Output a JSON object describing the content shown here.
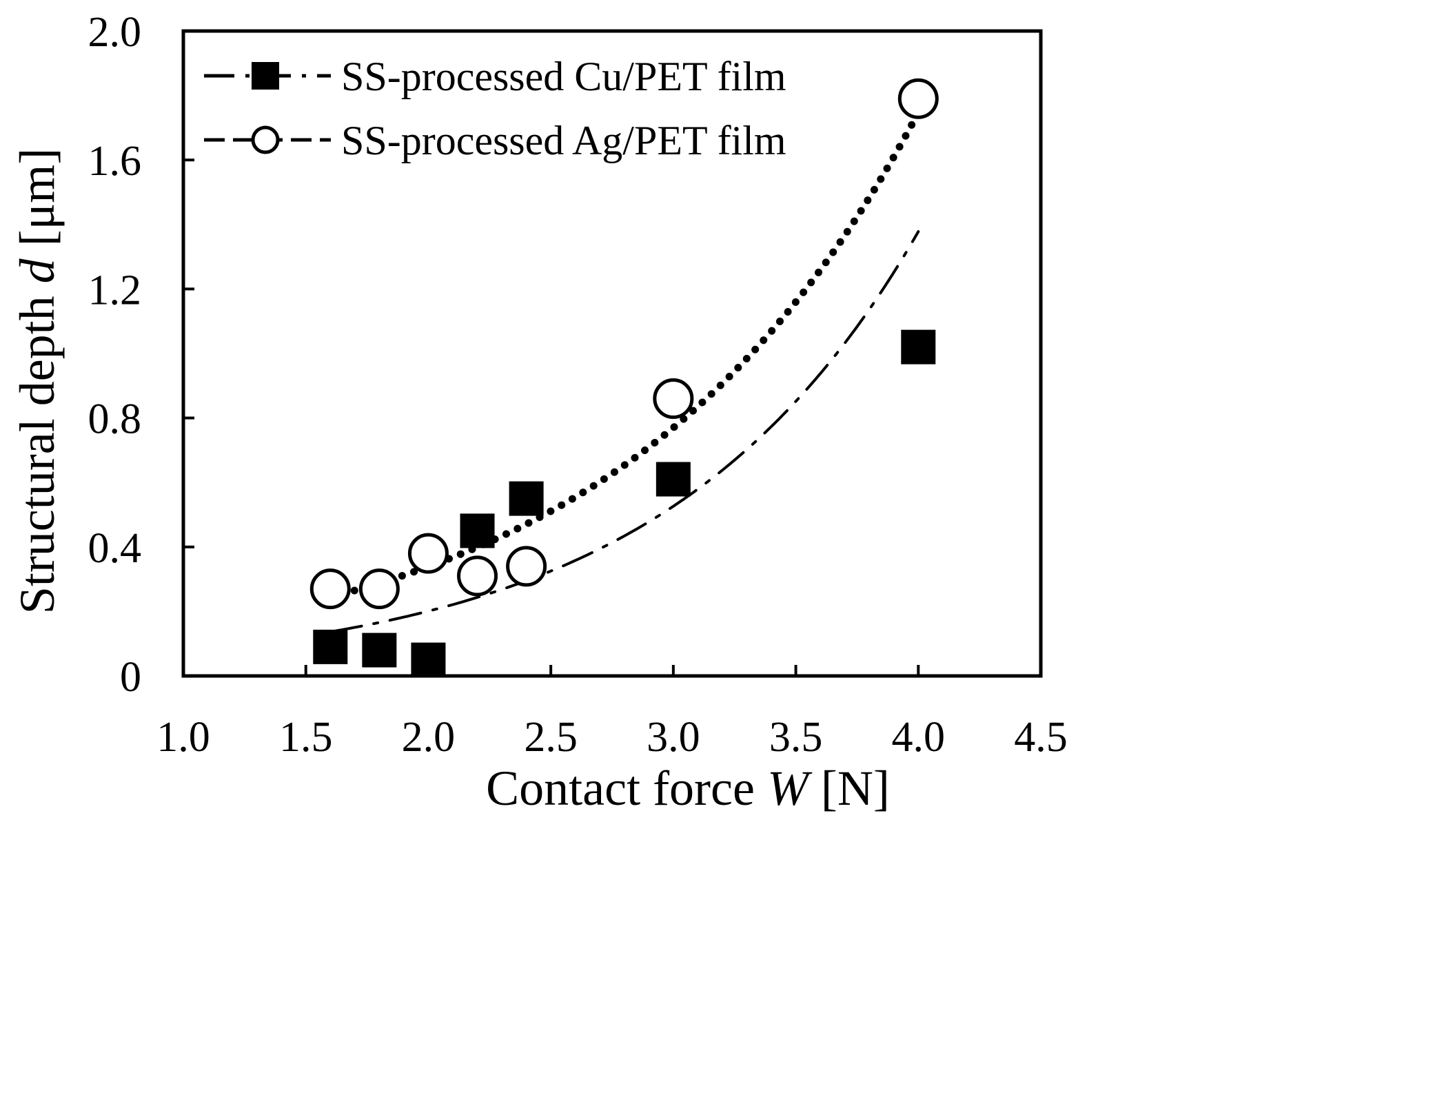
{
  "chart_data": {
    "type": "scatter",
    "title": "",
    "xlabel": "Contact force",
    "xlabel_var": "W",
    "xlabel_unit": "[N]",
    "ylabel": "Structural depth",
    "ylabel_var": "d",
    "ylabel_unit": "[μm]",
    "xlim": [
      1.0,
      4.5
    ],
    "ylim": [
      0,
      2.0
    ],
    "xticks": [
      1.0,
      1.5,
      2.0,
      2.5,
      3.0,
      3.5,
      4.0,
      4.5
    ],
    "xtick_labels": [
      "1.0",
      "1.5",
      "2.0",
      "2.5",
      "3.0",
      "3.5",
      "4.0",
      "4.5"
    ],
    "yticks": [
      0,
      0.4,
      0.8,
      1.2,
      1.6,
      2.0
    ],
    "ytick_labels": [
      "0",
      "0.4",
      "0.8",
      "1.2",
      "1.6",
      "2.0"
    ],
    "legend_position": "top-left",
    "grid": false,
    "series": [
      {
        "name": "SS-processed Cu/PET film",
        "marker": "filled-square",
        "line_style": "dash-dot",
        "x": [
          1.6,
          1.8,
          2.0,
          2.2,
          2.4,
          3.0,
          4.0
        ],
        "y": [
          0.09,
          0.08,
          0.05,
          0.45,
          0.55,
          0.61,
          1.02
        ],
        "fit": {
          "model": "exponential",
          "a": 0.0293,
          "b": 0.9627,
          "x_range": [
            1.6,
            4.0
          ]
        }
      },
      {
        "name": "SS-processed Ag/PET film",
        "marker": "open-circle",
        "line_style": "dotted",
        "x": [
          1.6,
          1.8,
          2.0,
          2.2,
          2.4,
          3.0,
          4.0
        ],
        "y": [
          0.27,
          0.27,
          0.38,
          0.31,
          0.34,
          0.86,
          1.79
        ],
        "fit": {
          "model": "exponential",
          "a": 0.0658,
          "b": 0.8198,
          "x_range": [
            1.6,
            4.0
          ]
        }
      }
    ]
  }
}
